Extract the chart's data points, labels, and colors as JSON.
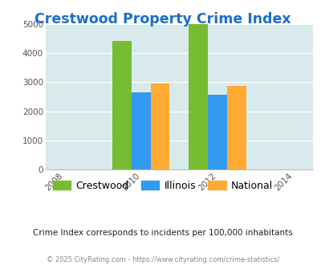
{
  "title": "Crestwood Property Crime Index",
  "title_color": "#1a6fcc",
  "subtitle": "Crime Index corresponds to incidents per 100,000 inhabitants",
  "footer": "© 2025 CityRating.com - https://www.cityrating.com/crime-statistics/",
  "years": [
    2010,
    2012
  ],
  "crestwood": [
    4400,
    5000
  ],
  "illinois": [
    2650,
    2580
  ],
  "national": [
    2950,
    2870
  ],
  "bar_colors": {
    "Crestwood": "#77bb33",
    "Illinois": "#3399ee",
    "National": "#ffaa33"
  },
  "xlim": [
    2007.5,
    2014.5
  ],
  "ylim": [
    0,
    5000
  ],
  "yticks": [
    0,
    1000,
    2000,
    3000,
    4000,
    5000
  ],
  "xticks": [
    2008,
    2010,
    2012,
    2014
  ],
  "bar_width": 0.5,
  "bg_color": "#d9eaec",
  "grid_color": "#ffffff",
  "legend_labels": [
    "Crestwood",
    "Illinois",
    "National"
  ],
  "subtitle_color": "#222222",
  "footer_color": "#888888"
}
